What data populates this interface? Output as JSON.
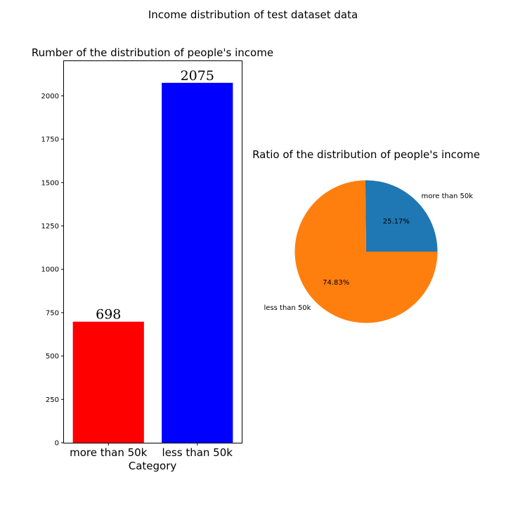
{
  "figure": {
    "title": "Income distribution of test dataset data"
  },
  "chart_data": [
    {
      "type": "bar",
      "title": "Rumber of the distribution of people's income",
      "xlabel": "Category",
      "ylabel": "",
      "categories": [
        "more than 50k",
        "less than 50k"
      ],
      "values": [
        698,
        2075
      ],
      "value_labels": [
        "698",
        "2075"
      ],
      "colors": [
        "#ff0000",
        "#0000ff"
      ],
      "ylim": [
        0,
        2200
      ],
      "yticks": [
        0,
        250,
        500,
        750,
        1000,
        1250,
        1500,
        1750,
        2000
      ],
      "ytick_labels": [
        "0",
        "250",
        "500",
        "750",
        "1000",
        "1250",
        "1500",
        "1750",
        "2000"
      ],
      "grid": false
    },
    {
      "type": "pie",
      "title": "Ratio of the distribution of people's income",
      "labels": [
        "more than 50k",
        "less than 50k"
      ],
      "values": [
        25.17,
        74.83
      ],
      "percent_labels": [
        "25.17%",
        "74.83%"
      ],
      "colors": [
        "#1f77b4",
        "#ff7f0e"
      ],
      "start_angle_deg": 0,
      "direction": "counterclockwise"
    }
  ]
}
